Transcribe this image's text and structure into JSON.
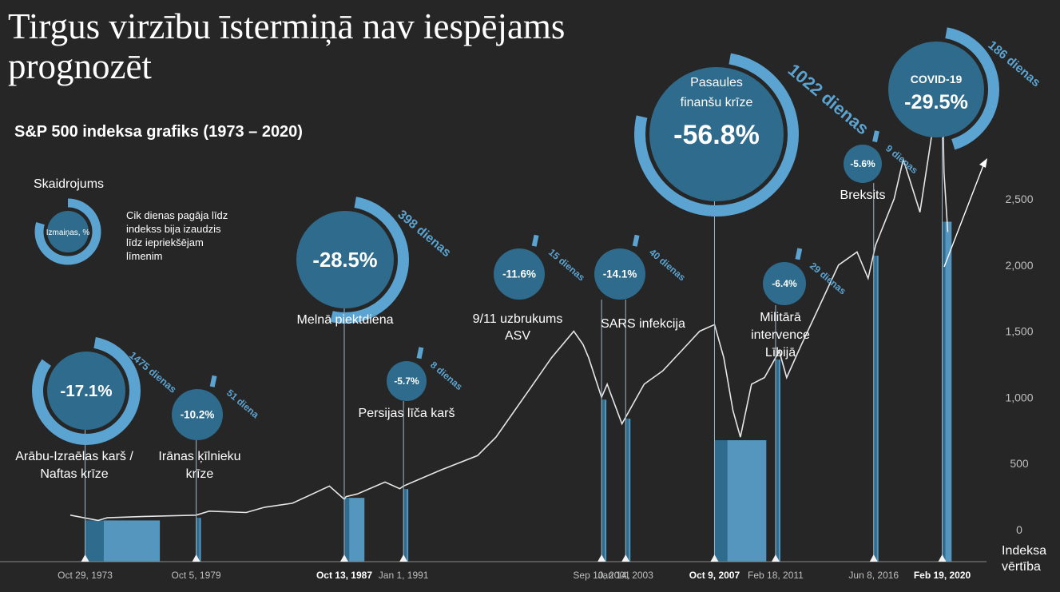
{
  "title": "Tirgus virzību īstermiņā nav iespējams prognozēt",
  "subtitle": "S&P 500 indeksa grafiks (1973 – 2020)",
  "legend": {
    "heading": "Skaidrojums",
    "inner": "Izmaiņas, %",
    "desc": [
      "Cik dienas pagāja līdz",
      "indekss bija izaudzis",
      "līdz iepriekšējam",
      "līmenim"
    ]
  },
  "colors": {
    "background": "#262626",
    "bubble": "#2e6b8c",
    "ring": "#5ba3d0",
    "line": "#e6e6e6",
    "bar": "#5ba3d0",
    "bar_dark": "#2e6b8c",
    "axis_text": "#bfbfbf"
  },
  "chart_data": {
    "type": "line",
    "ylabel": "Indeksa vērtība",
    "y_ticks": [
      "0",
      "500",
      "1,000",
      "1,500",
      "2,000",
      "2,500"
    ],
    "ylim": [
      0,
      3400
    ],
    "x_tick_labels": [
      "Oct 29, 1973",
      "Oct 5, 1979",
      "Oct 13, 1987",
      "Jan 1, 1991",
      "Sep 10, 2001",
      "Jan 14, 2003",
      "Oct 9, 2007",
      "Feb 18, 2011",
      "Jun 8, 2016",
      "Feb 19, 2020"
    ],
    "x": [
      1973.0,
      1974.5,
      1975.0,
      1977.0,
      1979.8,
      1980.5,
      1982.5,
      1983.5,
      1985.0,
      1987.0,
      1987.8,
      1987.9,
      1988.5,
      1990.0,
      1990.8,
      1991.0,
      1993.0,
      1995.0,
      1996.0,
      1997.0,
      1998.0,
      1999.0,
      2000.2,
      2000.7,
      2001.0,
      2001.7,
      2002.0,
      2002.8,
      2003.0,
      2004.0,
      2005.0,
      2006.0,
      2007.0,
      2007.8,
      2008.3,
      2008.8,
      2009.2,
      2009.8,
      2010.5,
      2011.3,
      2011.7,
      2012.5,
      2013.5,
      2014.5,
      2015.5,
      2016.1,
      2016.5,
      2017.5,
      2018.0,
      2018.9,
      2019.5,
      2020.1,
      2020.2,
      2020.4
    ],
    "y": [
      110,
      70,
      90,
      100,
      110,
      140,
      130,
      170,
      200,
      330,
      230,
      250,
      270,
      360,
      310,
      330,
      450,
      560,
      700,
      900,
      1100,
      1300,
      1500,
      1400,
      1300,
      1000,
      1100,
      800,
      850,
      1100,
      1200,
      1350,
      1500,
      1550,
      1300,
      900,
      700,
      1100,
      1150,
      1350,
      1150,
      1400,
      1700,
      2000,
      2100,
      1900,
      2150,
      2500,
      2800,
      2400,
      2950,
      3380,
      2700,
      2250
    ],
    "events": [
      {
        "name": "Arābu-Izraēlas karš / Naftas krīze",
        "date": "Oct 29, 1973",
        "change": "-17.1%",
        "days": "1475 dienas",
        "x": 1973.8,
        "days_n": 1475
      },
      {
        "name": "Irānas ķīlnieku krīze",
        "date": "Oct 5, 1979",
        "change": "-10.2%",
        "days": "51 diena",
        "x": 1979.8,
        "days_n": 51
      },
      {
        "name": "Melnā piektdiena",
        "date": "Oct 13, 1987",
        "change": "-28.5%",
        "days": "398 dienas",
        "x": 1987.8,
        "days_n": 398
      },
      {
        "name": "Persijas līča karš",
        "date": "Jan 1, 1991",
        "change": "-5.7%",
        "days": "8 dienas",
        "x": 1991.0,
        "days_n": 8
      },
      {
        "name": "9/11 uzbrukums ASV",
        "date": "Sep 10, 2001",
        "change": "-11.6%",
        "days": "15 dienas",
        "x": 2001.7,
        "days_n": 15
      },
      {
        "name": "SARS infekcija",
        "date": "Jan 14, 2003",
        "change": "-14.1%",
        "days": "40 dienas",
        "x": 2003.0,
        "days_n": 40
      },
      {
        "name": "Pasaules finanšu krīze",
        "date": "Oct 9, 2007",
        "change": "-56.8%",
        "days": "1022 dienas",
        "x": 2007.8,
        "days_n": 1022
      },
      {
        "name": "Militārā intervence Lībijā",
        "date": "Feb 18, 2011",
        "change": "-6.4%",
        "days": "29 dienas",
        "x": 2011.1,
        "days_n": 29
      },
      {
        "name": "Breksits",
        "date": "Jun 8, 2016",
        "change": "-5.6%",
        "days": "9 dienas",
        "x": 2016.4,
        "days_n": 9
      },
      {
        "name": "COVID-19",
        "date": "Feb 19, 2020",
        "change": "-29.5%",
        "days": "186 dienas",
        "x": 2020.1,
        "days_n": 186
      }
    ]
  }
}
